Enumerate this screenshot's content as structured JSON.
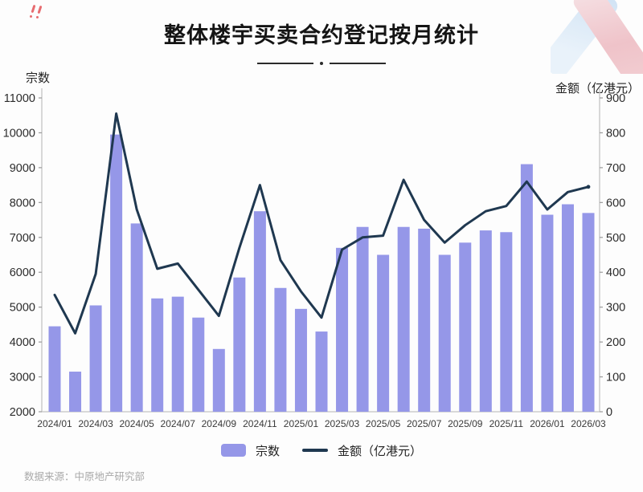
{
  "page": {
    "title": "整体楼宇买卖合约登记按月统计",
    "footer": "数据来源：中原地产研究部"
  },
  "chart_data": {
    "type": "combo-bar-line",
    "title": "整体楼宇买卖合约登记按月统计",
    "grid": false,
    "legend_position": "bottom",
    "left_axis": {
      "label": "宗数",
      "min": 2000,
      "max": 11000,
      "step": 1000,
      "ticks": [
        2000,
        3000,
        4000,
        5000,
        6000,
        7000,
        8000,
        9000,
        10000,
        11000
      ]
    },
    "right_axis": {
      "label": "金额（亿港元）",
      "min": 0,
      "max": 900,
      "step": 100,
      "ticks": [
        0,
        100,
        200,
        300,
        400,
        500,
        600,
        700,
        800,
        900
      ]
    },
    "categories": [
      "2024/01",
      "2024/02",
      "2024/03",
      "2024/04",
      "2024/05",
      "2024/06",
      "2024/07",
      "2024/08",
      "2024/09",
      "2024/10",
      "2024/11",
      "2024/12",
      "2025/01",
      "2025/02",
      "2025/03",
      "2025/04",
      "2025/05",
      "2025/06",
      "2025/07",
      "2025/08",
      "2025/09",
      "2025/10",
      "2025/11",
      "2025/12",
      "2026/01",
      "2026/02",
      "2026/03"
    ],
    "x_tick_labels": [
      "2024/01",
      "2024/03",
      "2024/05",
      "2024/07",
      "2024/09",
      "2024/11",
      "2025/01",
      "2025/03",
      "2025/05",
      "2025/07",
      "2025/09",
      "2025/11",
      "2026/01",
      "2026/03"
    ],
    "series": [
      {
        "name": "宗数",
        "type": "bar",
        "axis": "left",
        "color": "#9597e8",
        "values": [
          4450,
          3150,
          5050,
          9950,
          7400,
          5250,
          5300,
          4700,
          3800,
          5850,
          7750,
          5550,
          4950,
          4300,
          6700,
          7300,
          6500,
          7300,
          7250,
          6500,
          6850,
          7200,
          7150,
          9100,
          7650,
          7950,
          7700
        ]
      },
      {
        "name": "金额（亿港元）",
        "type": "line",
        "axis": "right",
        "color": "#1f3850",
        "values": [
          335,
          225,
          395,
          855,
          580,
          410,
          425,
          350,
          275,
          470,
          650,
          435,
          345,
          270,
          465,
          500,
          505,
          665,
          550,
          485,
          535,
          575,
          590,
          660,
          580,
          630,
          645
        ]
      }
    ],
    "legend": [
      {
        "label": "宗数",
        "swatch": "bar"
      },
      {
        "label": "金额（亿港元）",
        "swatch": "line"
      }
    ]
  },
  "colors": {
    "bar": "#9597e8",
    "line": "#1f3850",
    "axis": "#c4c4c4",
    "tick": "#9a9a9a",
    "title": "#141414",
    "footer": "#a9a9a9",
    "alert": "#e2484d"
  },
  "icons": {
    "top_left": "red-exclamation-icon",
    "top_right": "brand-ribbon-logo"
  }
}
